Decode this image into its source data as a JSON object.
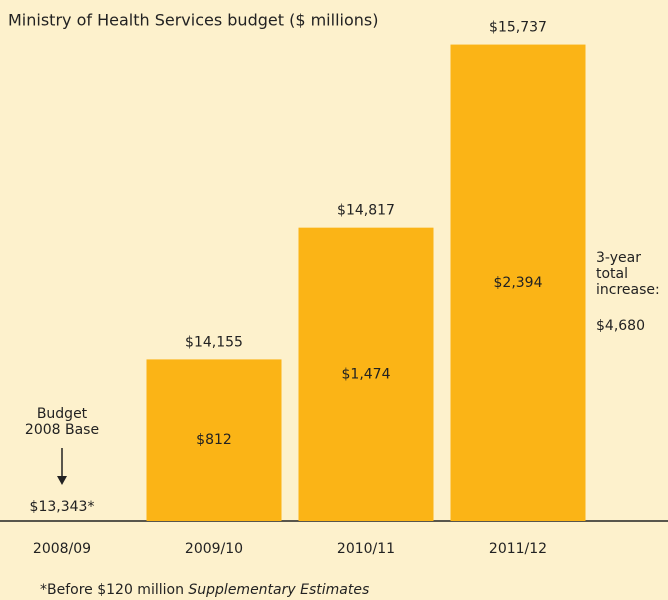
{
  "chart_data": {
    "type": "bar",
    "title": "Ministry of Health Services budget ($ millions)",
    "categories": [
      "2008/09",
      "2009/10",
      "2010/11",
      "2011/12"
    ],
    "values": [
      13343,
      14155,
      14817,
      15737
    ],
    "value_labels": [
      "$13,343*",
      "$14,155",
      "$14,817",
      "$15,737"
    ],
    "increases": [
      null,
      812,
      1474,
      2394
    ],
    "increase_labels": [
      null,
      "$812",
      "$1,474",
      "$2,394"
    ],
    "color": "#fbb416",
    "ylim": [
      13343,
      15760
    ],
    "base_annotation": [
      "Budget",
      "2008 Base"
    ],
    "total_annotation": [
      "3-year",
      "total",
      "increase:"
    ],
    "total_increase": 4680,
    "total_increase_label": "$4,680",
    "footnote": [
      "*Before $120 million ",
      "Supplementary Estimates"
    ]
  }
}
